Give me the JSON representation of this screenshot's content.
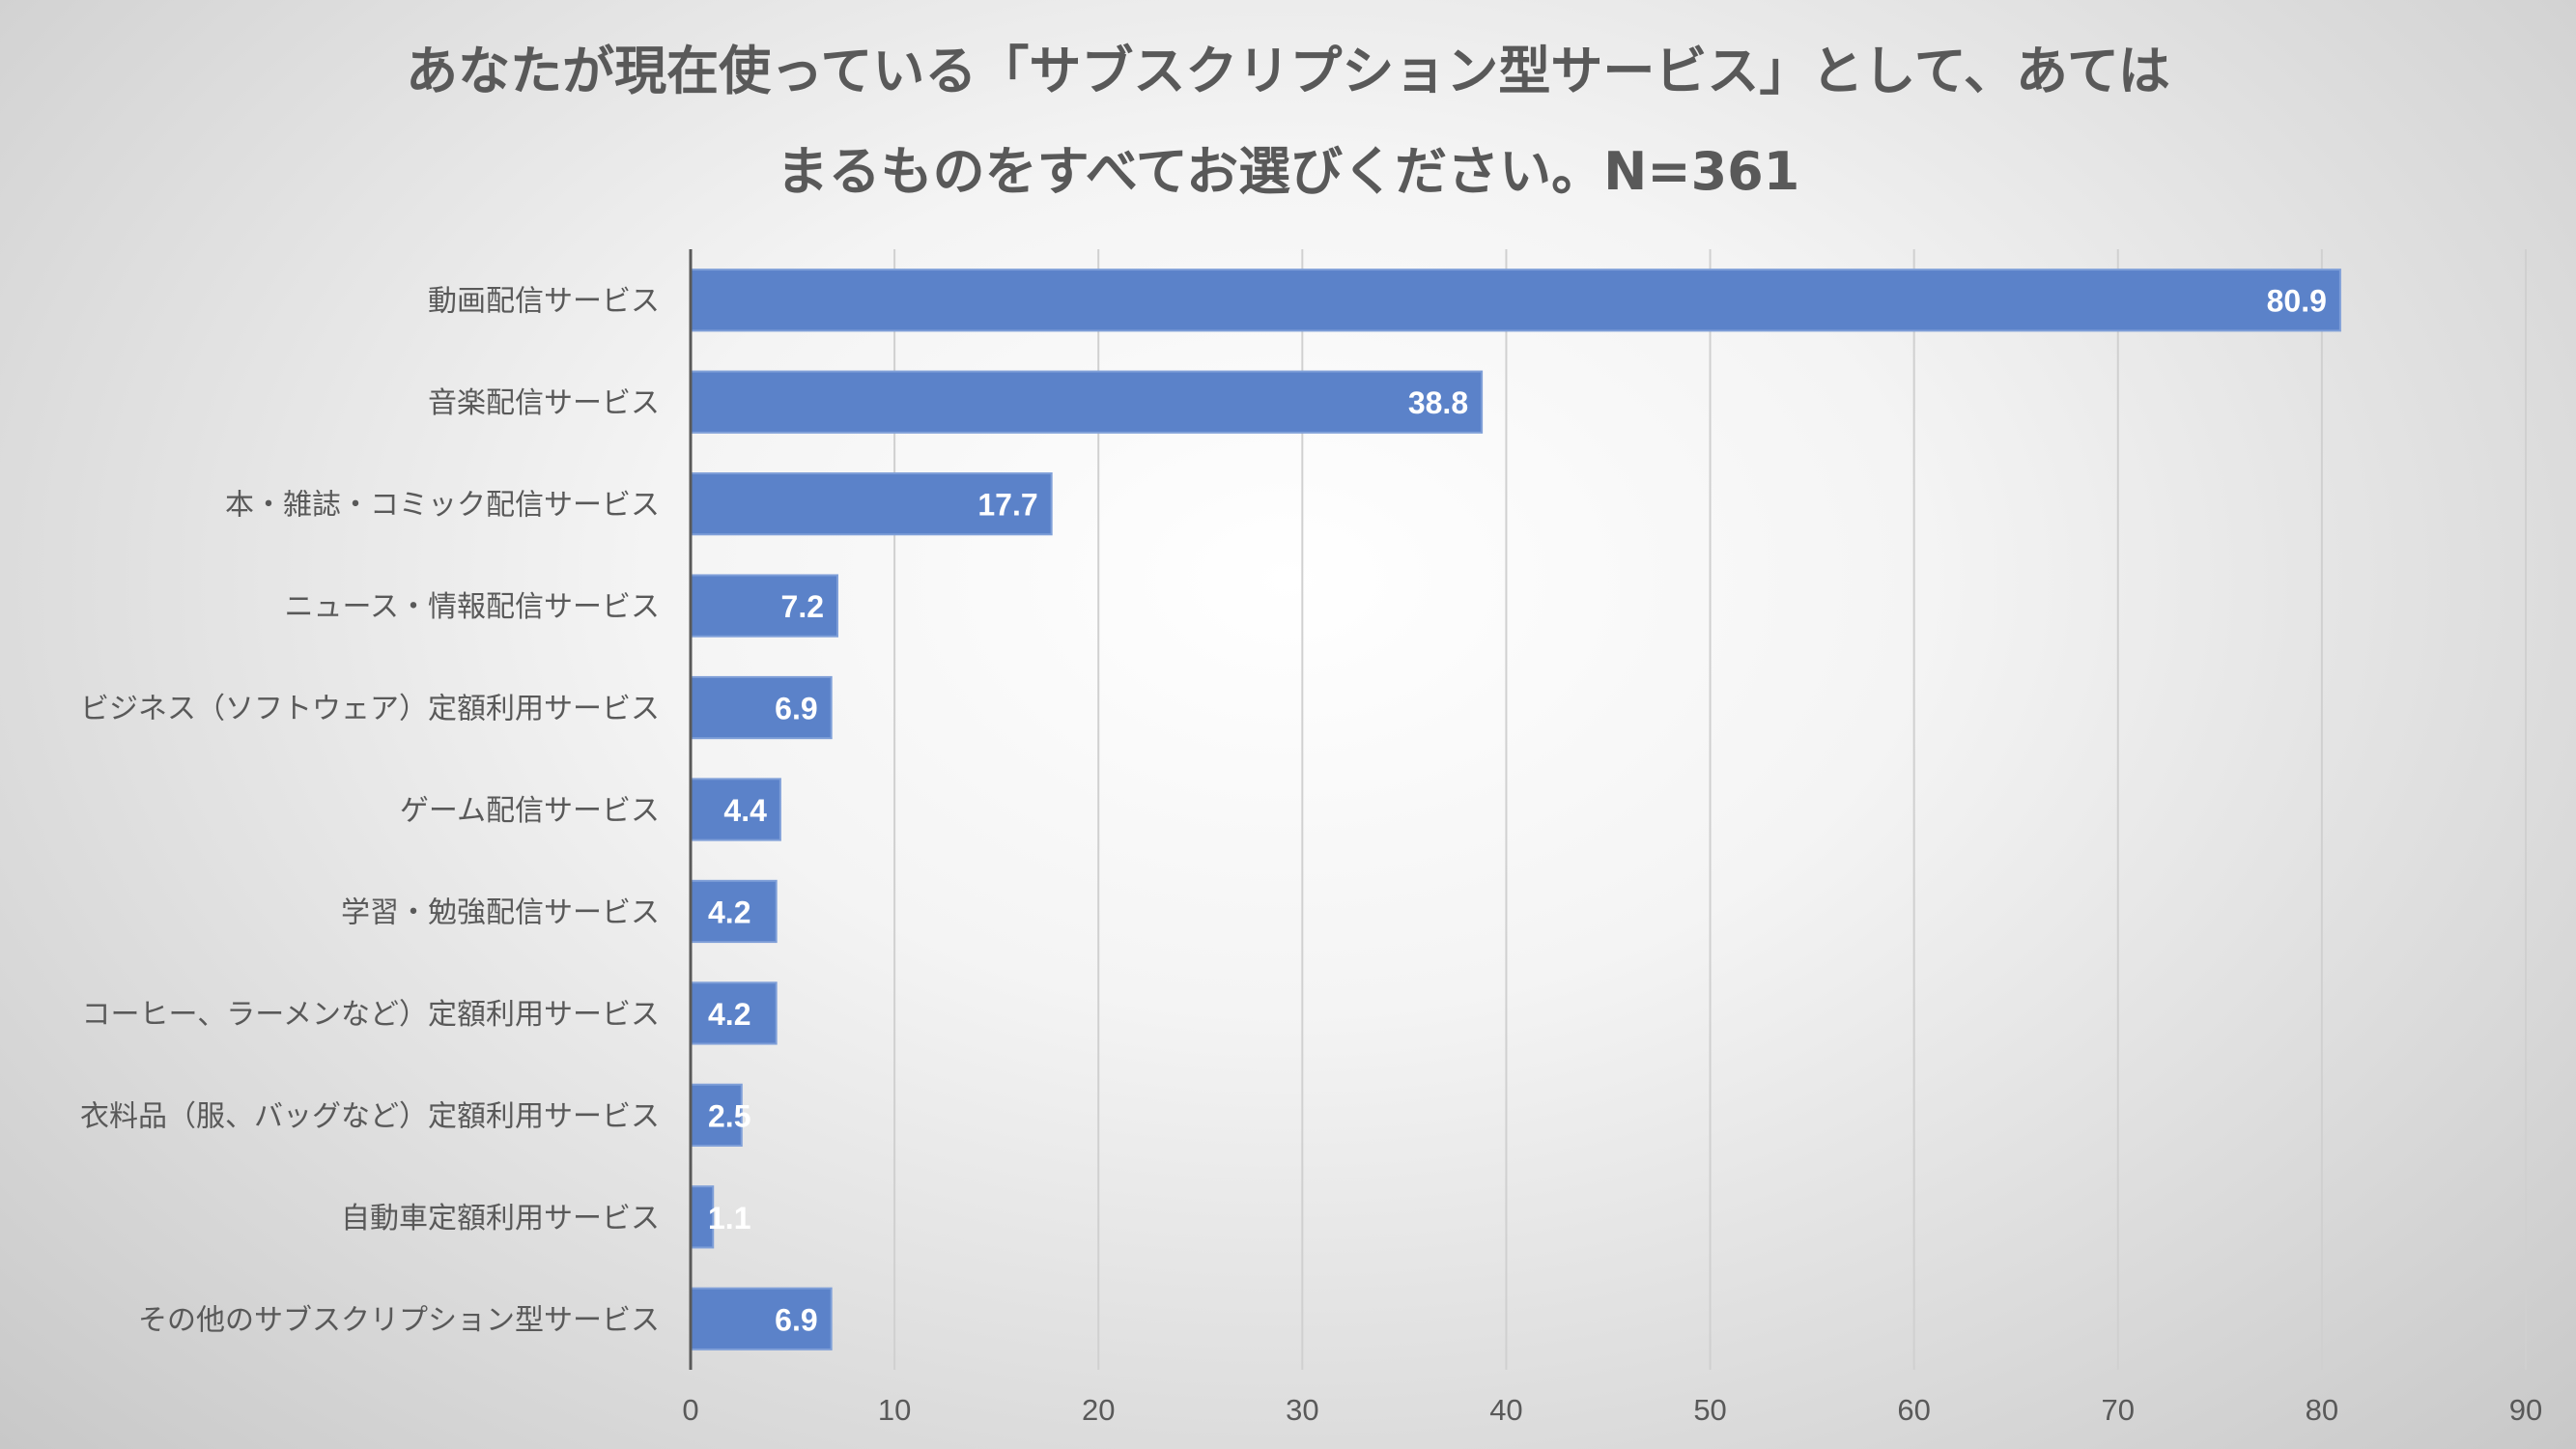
{
  "chart_data": {
    "type": "bar",
    "orientation": "horizontal",
    "title_lines": [
      "あなたが現在使っている「サブスクリプション型サービス」として、あてはまるものをすべてお選びください。N=361"
    ],
    "title_display_lines": [
      "あなたが現在使っている「サブスクリプション型サービス」として、あては",
      "まるものをすべてお選びください。N=361"
    ],
    "xlabel": "",
    "ylabel": "",
    "xlim": [
      0,
      90
    ],
    "xticks": [
      0,
      10,
      20,
      30,
      40,
      50,
      60,
      70,
      80,
      90
    ],
    "grid": true,
    "legend": "none",
    "bar_color": "#5b82c9",
    "categories": [
      "動画配信サービス",
      "音楽配信サービス",
      "本・雑誌・コミック配信サービス",
      "ニュース・情報配信サービス",
      "ビジネス（ソフトウェア）定額利用サービス",
      "ゲーム配信サービス",
      "学習・勉強配信サービス",
      "コーヒー、ラーメンなど）定額利用サービス",
      "衣料品（服、バッグなど）定額利用サービス",
      "自動車定額利用サービス",
      "その他のサブスクリプション型サービス"
    ],
    "values": [
      80.9,
      38.8,
      17.7,
      7.2,
      6.9,
      4.4,
      4.2,
      4.2,
      2.5,
      1.1,
      6.9
    ],
    "data_labels": [
      "80.9",
      "38.8",
      "17.7",
      "7.2",
      "6.9",
      "4.4",
      "4.2",
      "4.2",
      "2.5",
      "1.1",
      "6.9"
    ]
  }
}
